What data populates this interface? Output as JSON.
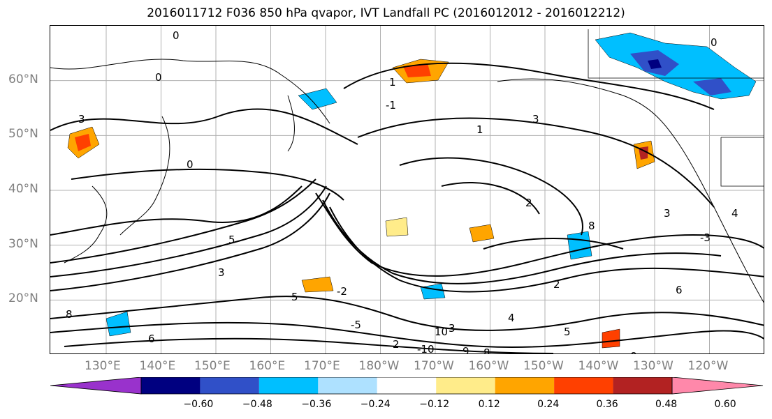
{
  "title": "2016011712 F036 850 hPa qvapor, IVT Landfall PC (2016012012 - 2016012212)",
  "map": {
    "lat_labels": [
      {
        "text": "60°N",
        "lat": 60
      },
      {
        "text": "50°N",
        "lat": 50
      },
      {
        "text": "40°N",
        "lat": 40
      },
      {
        "text": "30°N",
        "lat": 30
      },
      {
        "text": "20°N",
        "lat": 20
      }
    ],
    "lon_labels": [
      {
        "text": "130°E"
      },
      {
        "text": "140°E"
      },
      {
        "text": "150°E"
      },
      {
        "text": "160°E"
      },
      {
        "text": "170°E"
      },
      {
        "text": "180°W"
      },
      {
        "text": "170°W"
      },
      {
        "text": "160°W"
      },
      {
        "text": "150°W"
      },
      {
        "text": "140°W"
      },
      {
        "text": "130°W"
      },
      {
        "text": "120°W"
      }
    ],
    "contour_labels": [
      "0",
      "0",
      "0",
      "1",
      "3",
      "-1",
      "2",
      "3",
      "4",
      "5",
      "8",
      "-2",
      "3",
      "2",
      "8",
      "5",
      "-3",
      "-5",
      "6",
      "10",
      "-10",
      "3",
      "4",
      "5",
      "6",
      "8",
      "-9",
      "9",
      "2",
      "0",
      "3",
      "1"
    ],
    "fill_colors": {
      "neg_strong": "#000080",
      "neg_med": "#3050c8",
      "neg": "#00bfff",
      "neg_light": "#aee1ff",
      "pos_light": "#ffec8a",
      "pos": "#ffa500",
      "pos_strong": "#ff4000",
      "pos_vstrong": "#b22222"
    }
  },
  "colorbar": {
    "colors": [
      "#9932cc",
      "#000080",
      "#3050c8",
      "#00bfff",
      "#aee1ff",
      "#ffffff",
      "#ffec8a",
      "#ffa500",
      "#ff4000",
      "#b22222",
      "#ff88aa"
    ],
    "ticks": [
      "−0.60",
      "−0.48",
      "−0.36",
      "−0.24",
      "−0.12",
      "0.12",
      "0.24",
      "0.36",
      "0.48",
      "0.60"
    ]
  }
}
